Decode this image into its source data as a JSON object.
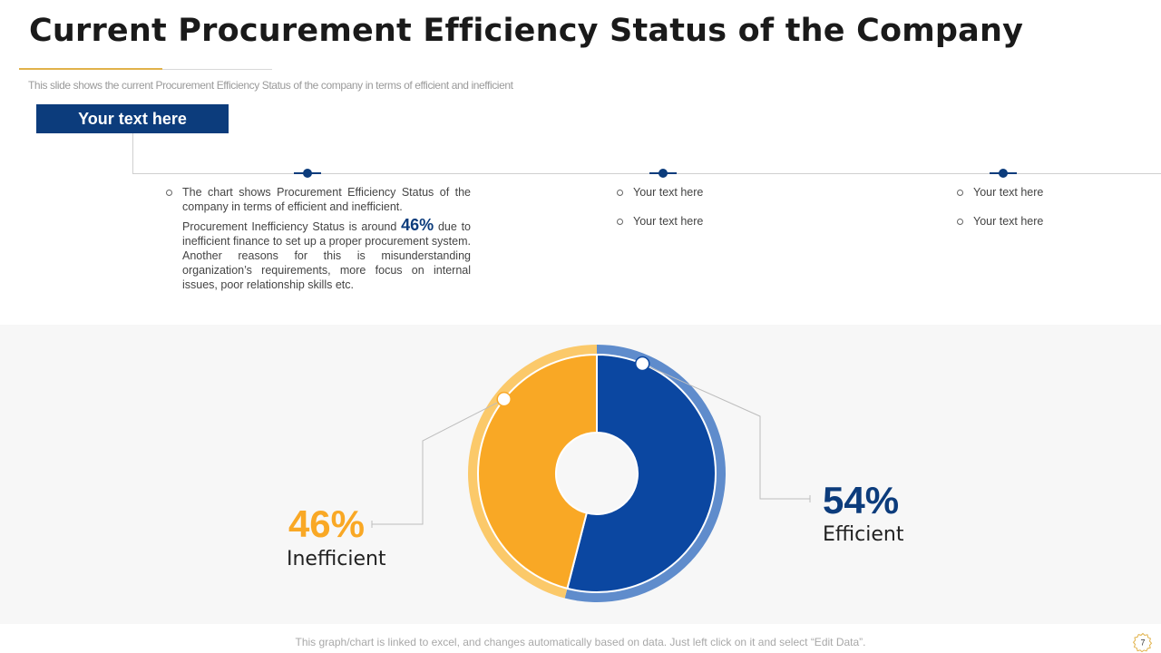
{
  "title": "Current Procurement Efficiency Status of the Company",
  "subtitle": "This slide shows the current Procurement Efficiency Status of the company in terms of efficient and inefficient",
  "header_box": "Your text here",
  "col1": {
    "line1": "The chart shows Procurement Efficiency Status of the company in terms of efficient and inefficient.",
    "line2_pre": "Procurement Inefficiency Status is around",
    "line2_pct": "46%",
    "line2_post": "due to inefficient finance to set up a proper procurement system. Another reasons for this is misunderstanding organization’s requirements, more focus on internal issues, poor relationship skills etc."
  },
  "col2": [
    "Your text here",
    "Your text here"
  ],
  "col3": [
    "Your text here",
    "Your text here"
  ],
  "chart_data": {
    "type": "pie",
    "style": "donut",
    "categories": [
      "Efficient",
      "Inefficient"
    ],
    "values": [
      54,
      46
    ],
    "labels": [
      "54%",
      "46%"
    ],
    "colors": [
      "#0b47a1",
      "#f9a825"
    ]
  },
  "colors": {
    "navy": "#0c3c7c",
    "blue": "#0b47a1",
    "blue_ring": "#5f8ccc",
    "orange": "#f9a825",
    "orange_ring": "#fbc96a",
    "gold": "#e1b24a"
  },
  "footer": "This graph/chart is linked to excel, and changes automatically based on data. Just left click on it and select “Edit Data”.",
  "page_number": "7"
}
